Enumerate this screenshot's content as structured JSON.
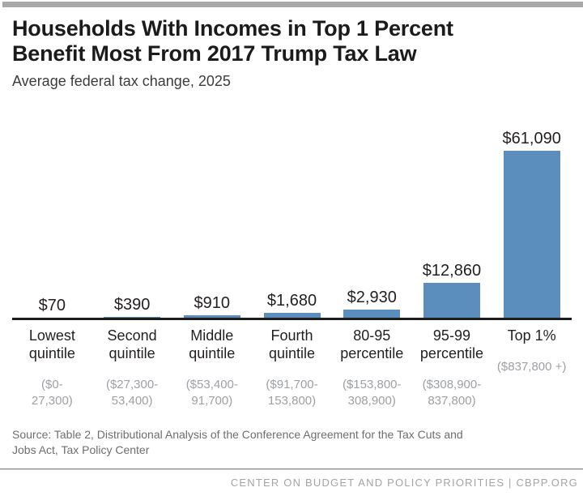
{
  "header": {
    "title": "Households With Incomes in Top 1 Percent\nBenefit Most From 2017 Trump Tax Law",
    "subtitle": "Average federal tax change, 2025"
  },
  "chart_data": {
    "type": "bar",
    "title": "Households With Incomes in Top 1 Percent Benefit Most From 2017 Trump Tax Law",
    "subtitle": "Average federal tax change, 2025",
    "categories": [
      "Lowest quintile",
      "Second quintile",
      "Middle quintile",
      "Fourth quintile",
      "80-95 percentile",
      "95-99 percentile",
      "Top 1%"
    ],
    "income_ranges": [
      "($0-27,300)",
      "($27,300-53,400)",
      "($53,400-91,700)",
      "($91,700-153,800)",
      "($153,800-308,900)",
      "($308,900-837,800)",
      "($837,800 +)"
    ],
    "income_ranges_display": [
      "($0-\n27,300)",
      "($27,300-\n53,400)",
      "($53,400-\n91,700)",
      "($91,700-\n153,800)",
      "($153,800-\n308,900)",
      "($308,900-\n837,800)",
      "($837,800 +)"
    ],
    "values": [
      70,
      390,
      910,
      1680,
      2930,
      12860,
      61090
    ],
    "value_labels": [
      "$70",
      "$390",
      "$910",
      "$1,680",
      "$2,930",
      "$12,860",
      "$61,090"
    ],
    "xlabel": "",
    "ylabel": "",
    "ylim": [
      0,
      61090
    ],
    "grid": false,
    "legend": false,
    "bar_color": "#5b8ebc",
    "axis_color": "#1c1c1c"
  },
  "footer": {
    "source": "Source: Table 2, Distributional Analysis of the Conference Agreement for the Tax Cuts and\nJobs Act, Tax Policy Center",
    "branding": "CENTER ON BUDGET AND POLICY PRIORITIES | CBPP.ORG"
  }
}
